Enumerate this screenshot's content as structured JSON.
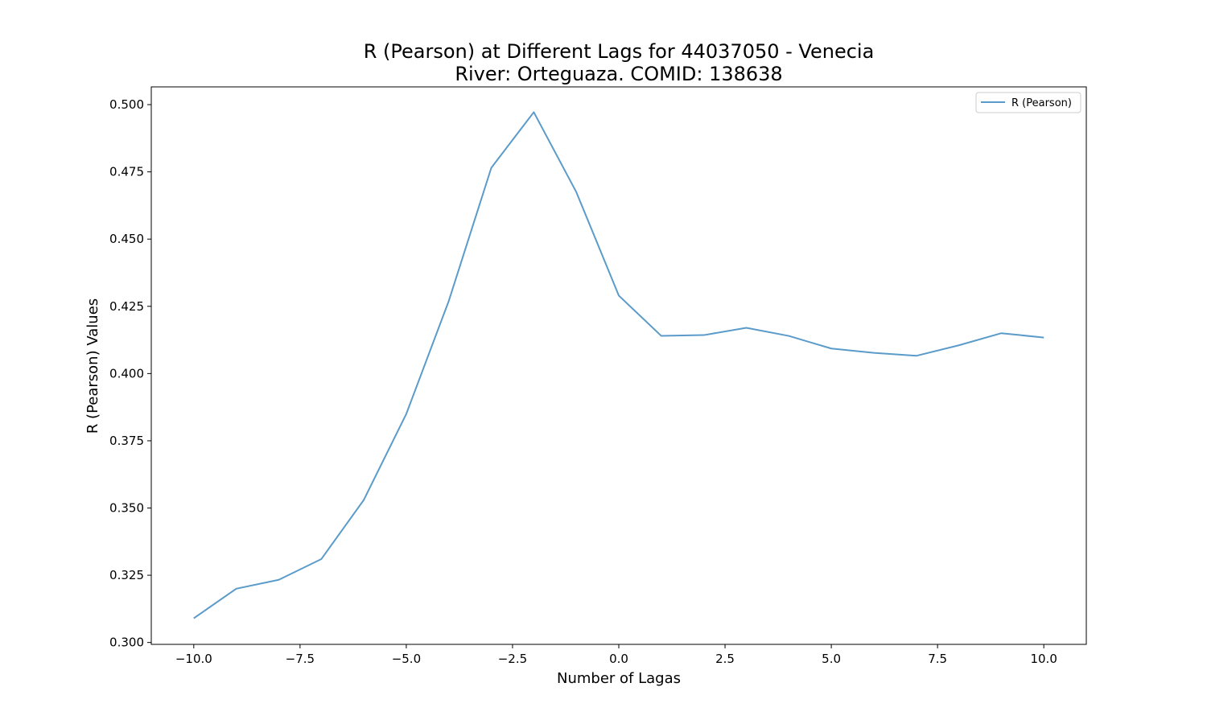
{
  "chart_data": {
    "type": "line",
    "title_line1": "R (Pearson) at Different Lags for 44037050 - Venecia",
    "title_line2": "River: Orteguaza. COMID: 138638",
    "xlabel": "Number of Lagas",
    "ylabel": "R (Pearson) Values",
    "xlim": [
      -11,
      11
    ],
    "ylim": [
      0.2993,
      0.5066
    ],
    "x_ticks": [
      -10.0,
      -7.5,
      -5.0,
      -2.5,
      0.0,
      2.5,
      5.0,
      7.5,
      10.0
    ],
    "x_tick_labels": [
      "−10.0",
      "−7.5",
      "−5.0",
      "−2.5",
      "0.0",
      "2.5",
      "5.0",
      "7.5",
      "10.0"
    ],
    "y_ticks": [
      0.3,
      0.325,
      0.35,
      0.375,
      0.4,
      0.425,
      0.45,
      0.475,
      0.5
    ],
    "y_tick_labels": [
      "0.300",
      "0.325",
      "0.350",
      "0.375",
      "0.400",
      "0.425",
      "0.450",
      "0.475",
      "0.500"
    ],
    "grid": false,
    "legend_position": "top-right",
    "series": [
      {
        "name": "R (Pearson)",
        "color": "#5b9bc9",
        "x": [
          -10,
          -9,
          -8,
          -7,
          -6,
          -5,
          -4,
          -3,
          -2,
          -1,
          0,
          1,
          2,
          3,
          4,
          5,
          6,
          7,
          8,
          9,
          10
        ],
        "y": [
          0.309,
          0.32,
          0.3233,
          0.331,
          0.353,
          0.385,
          0.427,
          0.4765,
          0.4972,
          0.4675,
          0.429,
          0.414,
          0.4143,
          0.417,
          0.414,
          0.4093,
          0.4077,
          0.4066,
          0.4105,
          0.415,
          0.4134
        ]
      }
    ]
  }
}
